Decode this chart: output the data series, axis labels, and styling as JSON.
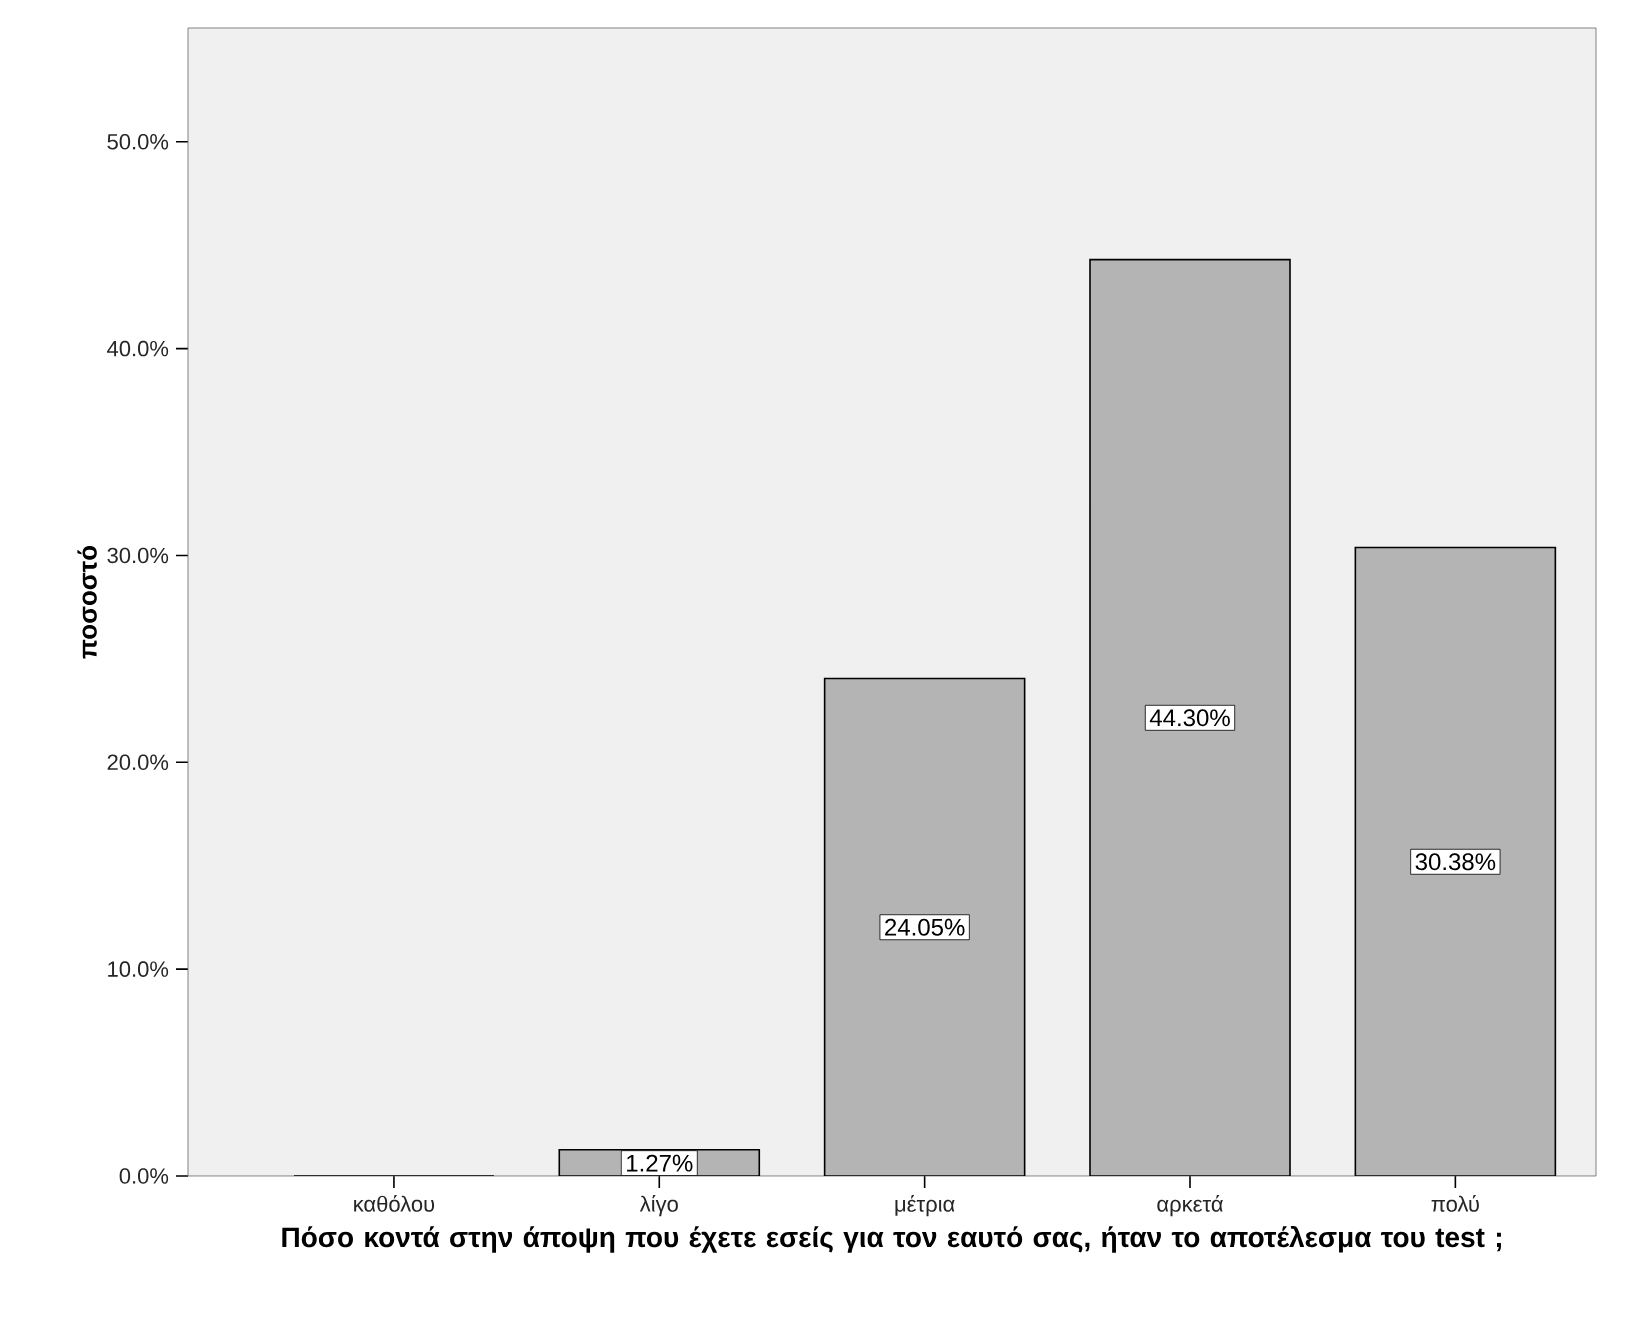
{
  "chart_data": {
    "type": "bar",
    "xlabel": "Πόσο κοντά στην άποψη που έχετε εσείς για τον εαυτό σας,  ήταν το αποτέλεσμα του test ;",
    "ylabel": "ποσοστό",
    "categories": [
      "καθόλου",
      "λίγο",
      "μέτρια",
      "αρκετά",
      "πολύ"
    ],
    "values": [
      0,
      1.27,
      24.05,
      44.3,
      30.38
    ],
    "value_labels": [
      null,
      "1.27%",
      "24.05%",
      "44.30%",
      "30.38%"
    ],
    "color": "#b4b4b4",
    "ylim": [
      0,
      55.5
    ],
    "yticks": [
      {
        "value": 0,
        "label": "0.0%"
      },
      {
        "value": 10,
        "label": "10.0%"
      },
      {
        "value": 20,
        "label": "20.0%"
      },
      {
        "value": 30,
        "label": "30.0%"
      },
      {
        "value": 40,
        "label": "40.0%"
      },
      {
        "value": 50,
        "label": "50.0%"
      }
    ],
    "grid": false
  }
}
